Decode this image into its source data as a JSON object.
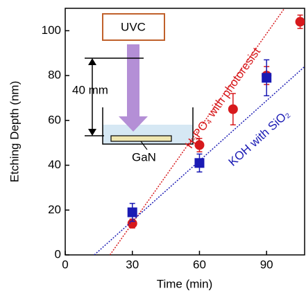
{
  "chart_data": {
    "type": "scatter",
    "xlabel": "Time (min)",
    "ylabel": "Etching Depth (nm)",
    "xlim": [
      0,
      107
    ],
    "xticks": [
      0,
      30,
      60,
      90
    ],
    "ylim": [
      0,
      110
    ],
    "yticks": [
      0,
      20,
      40,
      60,
      80,
      100
    ],
    "series": [
      {
        "name": "H₃PO₄ with photoresist",
        "color": "#d7191c",
        "marker": "circle",
        "x": [
          30,
          60,
          75,
          90,
          105
        ],
        "values": [
          14,
          49,
          65,
          80,
          104
        ],
        "errors": [
          2,
          3,
          7,
          4,
          3
        ],
        "fit": {
          "x": [
            20,
            98
          ],
          "values": [
            0,
            110
          ]
        }
      },
      {
        "name": "KOH with SiO₂",
        "color": "#1a1ab4",
        "marker": "square",
        "x": [
          30,
          60,
          90
        ],
        "values": [
          19,
          41,
          79
        ],
        "errors": [
          4,
          4,
          8
        ],
        "fit": {
          "x": [
            13,
            107
          ],
          "values": [
            0,
            84
          ]
        }
      }
    ],
    "inset": {
      "light_label": "UVC",
      "distance_label": "40 mm",
      "sample_label": "GaN"
    }
  }
}
